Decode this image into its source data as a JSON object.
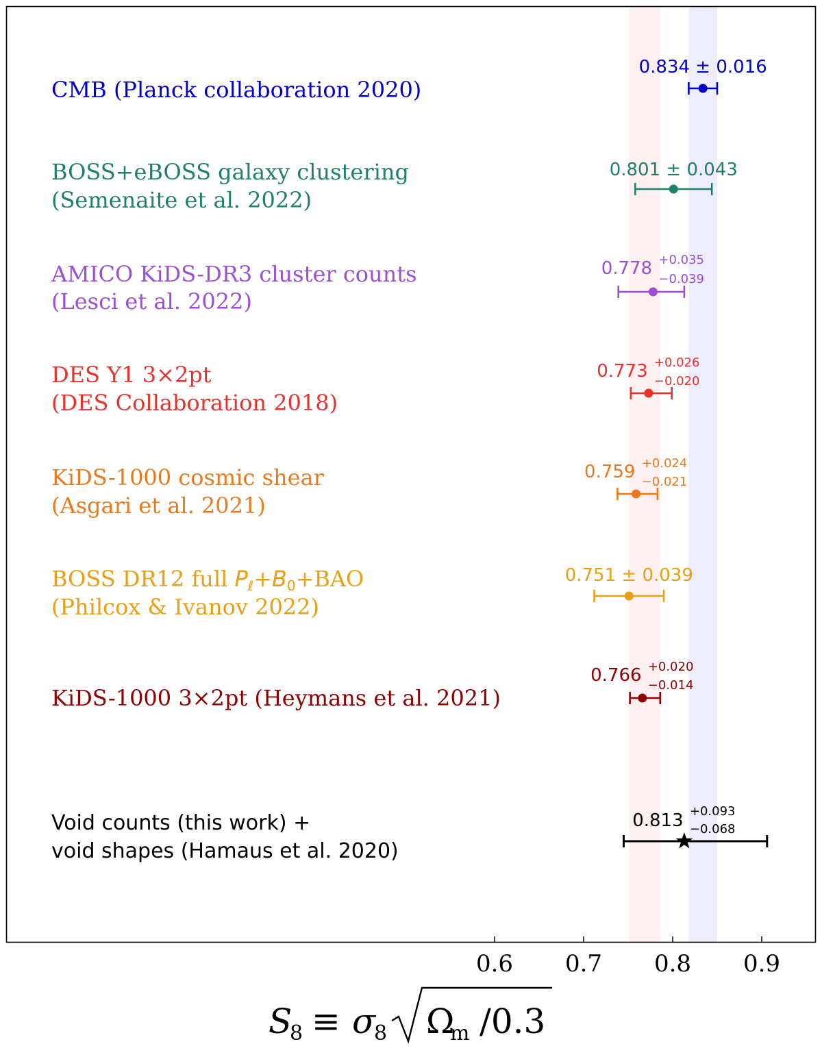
{
  "chart_data": {
    "type": "scatter",
    "subtype": "whisker-plot",
    "x_axis": {
      "label_parts": {
        "s": "S",
        "s_sub": "8",
        "equiv": "≡",
        "sigma": "σ",
        "sigma_sub": "8",
        "omega": "Ω",
        "omega_sub": "m",
        "rest": "/0.3"
      },
      "ticks": [
        0.6,
        0.7,
        0.8,
        0.9
      ],
      "tick_labels": [
        "0.6",
        "0.7",
        "0.8",
        "0.9"
      ],
      "range": [
        0.5,
        0.96
      ]
    },
    "bands": [
      {
        "name": "pink-band",
        "from": 0.751,
        "to": 0.786,
        "color": "#fdf0f0"
      },
      {
        "name": "blue-band",
        "from": 0.818,
        "to": 0.85,
        "color": "#ededfc"
      }
    ],
    "entries": [
      {
        "label_lines": [
          "CMB (Planck collaboration 2020)"
        ],
        "value": 0.834,
        "err_plus": 0.016,
        "err_minus": 0.016,
        "symmetric": true,
        "value_text": "0.834",
        "plus_text": "0.016",
        "minus_text": "0.016",
        "pm_symbol": "±",
        "color": "#0000c8",
        "marker": "circle"
      },
      {
        "label_lines": [
          "BOSS+eBOSS galaxy clustering",
          "(Semenaite et al. 2022)"
        ],
        "value": 0.801,
        "err_plus": 0.043,
        "err_minus": 0.043,
        "symmetric": true,
        "value_text": "0.801",
        "plus_text": "0.043",
        "minus_text": "0.043",
        "pm_symbol": "±",
        "color": "#1f7f6b",
        "marker": "circle"
      },
      {
        "label_lines": [
          "AMICO KiDS-DR3 cluster counts",
          "(Lesci et al. 2022)"
        ],
        "value": 0.778,
        "err_plus": 0.035,
        "err_minus": 0.039,
        "symmetric": false,
        "value_text": "0.778",
        "plus_text": "+0.035",
        "minus_text": "−0.039",
        "color": "#9b4fd6",
        "marker": "circle"
      },
      {
        "label_lines": [
          "DES Y1 3×2pt",
          "(DES Collaboration 2018)"
        ],
        "value": 0.773,
        "err_plus": 0.026,
        "err_minus": 0.02,
        "symmetric": false,
        "value_text": "0.773",
        "plus_text": "+0.026",
        "minus_text": "−0.020",
        "color": "#e8312a",
        "marker": "circle"
      },
      {
        "label_lines": [
          "KiDS-1000 cosmic shear",
          "(Asgari et al. 2021)"
        ],
        "value": 0.759,
        "err_plus": 0.024,
        "err_minus": 0.021,
        "symmetric": false,
        "value_text": "0.759",
        "plus_text": "+0.024",
        "minus_text": "−0.021",
        "color": "#e87a1e",
        "marker": "circle"
      },
      {
        "label_lines": [
          "BOSS DR12 full P_ℓ+B_0+BAO",
          "(Philcox & Ivanov 2022)"
        ],
        "label_rich": {
          "pre": "BOSS DR12 full ",
          "p": "P",
          "p_sub": "ℓ",
          "plus1": "+",
          "b": "B",
          "b_sub": "0",
          "post": "+BAO"
        },
        "value": 0.751,
        "err_plus": 0.039,
        "err_minus": 0.039,
        "symmetric": true,
        "value_text": "0.751",
        "plus_text": "0.039",
        "minus_text": "0.039",
        "pm_symbol": "±",
        "color": "#e8a012",
        "marker": "circle"
      },
      {
        "label_lines": [
          "KiDS-1000 3×2pt (Heymans et al. 2021)"
        ],
        "value": 0.766,
        "err_plus": 0.02,
        "err_minus": 0.014,
        "symmetric": false,
        "value_text": "0.766",
        "plus_text": "+0.020",
        "minus_text": "−0.014",
        "color": "#8b0000",
        "marker": "circle"
      },
      {
        "label_lines": [
          "Void counts (this work) +",
          "void shapes (Hamaus et al. 2020)"
        ],
        "value": 0.813,
        "err_plus": 0.093,
        "err_minus": 0.068,
        "symmetric": false,
        "value_text": "0.813",
        "plus_text": "+0.093",
        "minus_text": "−0.068",
        "color": "#000000",
        "marker": "star"
      }
    ]
  }
}
